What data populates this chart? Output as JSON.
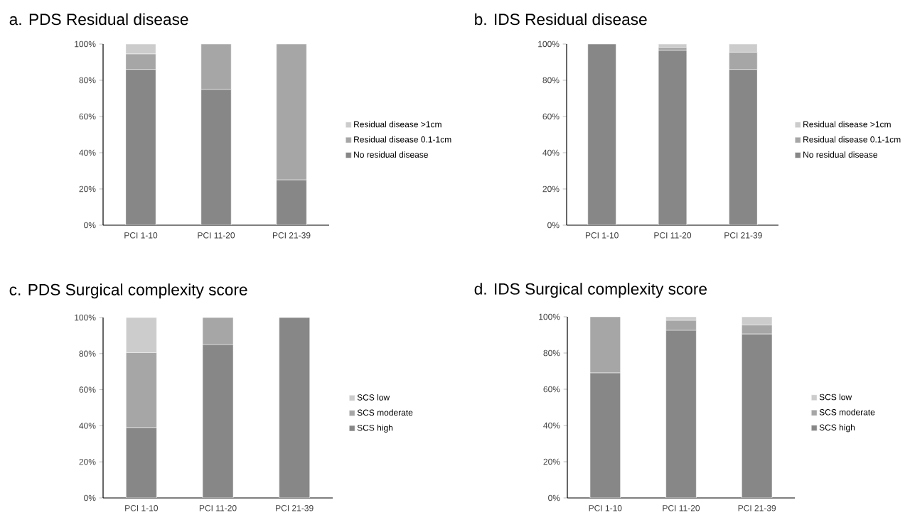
{
  "chart_data": [
    {
      "type": "bar",
      "stacked": true,
      "title": "a. PDS Residual disease",
      "categories": [
        "PCI 1-10",
        "PCI 11-20",
        "PCI 21-39"
      ],
      "series": [
        {
          "name": "No residual disease",
          "color": "#878787",
          "values": [
            86,
            75,
            25
          ]
        },
        {
          "name": "Residual disease 0.1-1cm",
          "color": "#a6a6a6",
          "values": [
            8.5,
            25,
            75
          ]
        },
        {
          "name": "Residual disease >1cm",
          "color": "#cccccc",
          "values": [
            5.5,
            0,
            0
          ]
        }
      ],
      "ylim": [
        0,
        100
      ],
      "yticks": [
        {
          "value": 0,
          "label": "0%"
        },
        {
          "value": 20,
          "label": "20%"
        },
        {
          "value": 40,
          "label": "40%"
        },
        {
          "value": 60,
          "label": "60%"
        },
        {
          "value": 80,
          "label": "80%"
        },
        {
          "value": 100,
          "label": "100%"
        }
      ],
      "legend": "right"
    },
    {
      "type": "bar",
      "stacked": true,
      "title": "b. IDS Residual disease",
      "categories": [
        "PCI 1-10",
        "PCI 11-20",
        "PCI 21-39"
      ],
      "series": [
        {
          "name": "No residual disease",
          "color": "#878787",
          "values": [
            100,
            96.5,
            86
          ]
        },
        {
          "name": "Residual disease 0.1-1cm",
          "color": "#a6a6a6",
          "values": [
            0,
            1.7,
            9.5
          ]
        },
        {
          "name": "Residual disease >1cm",
          "color": "#cccccc",
          "values": [
            0,
            1.8,
            4.5
          ]
        }
      ],
      "ylim": [
        0,
        100
      ],
      "yticks": [
        {
          "value": 0,
          "label": "0%"
        },
        {
          "value": 20,
          "label": "20%"
        },
        {
          "value": 40,
          "label": "40%"
        },
        {
          "value": 60,
          "label": "60%"
        },
        {
          "value": 80,
          "label": "80%"
        },
        {
          "value": 100,
          "label": "100%"
        }
      ],
      "legend": "right"
    },
    {
      "type": "bar",
      "stacked": true,
      "title": "c. PDS Surgical complexity score",
      "categories": [
        "PCI 1-10",
        "PCI 11-20",
        "PCI 21-39"
      ],
      "series": [
        {
          "name": "SCS high",
          "color": "#878787",
          "values": [
            39,
            85,
            100
          ]
        },
        {
          "name": "SCS moderate",
          "color": "#a6a6a6",
          "values": [
            41.5,
            15,
            0
          ]
        },
        {
          "name": "SCS low",
          "color": "#cccccc",
          "values": [
            19.5,
            0,
            0
          ]
        }
      ],
      "ylim": [
        0,
        100
      ],
      "yticks": [
        {
          "value": 0,
          "label": "0%"
        },
        {
          "value": 20,
          "label": "20%"
        },
        {
          "value": 40,
          "label": "40%"
        },
        {
          "value": 60,
          "label": "60%"
        },
        {
          "value": 80,
          "label": "80%"
        },
        {
          "value": 100,
          "label": "100%"
        }
      ],
      "legend": "right"
    },
    {
      "type": "bar",
      "stacked": true,
      "title": "d. IDS Surgical complexity score",
      "categories": [
        "PCI 1-10",
        "PCI 11-20",
        "PCI 21-39"
      ],
      "series": [
        {
          "name": "SCS high",
          "color": "#878787",
          "values": [
            69,
            92.5,
            90.5
          ]
        },
        {
          "name": "SCS moderate",
          "color": "#a6a6a6",
          "values": [
            31,
            5.5,
            5
          ]
        },
        {
          "name": "SCS low",
          "color": "#cccccc",
          "values": [
            0,
            2,
            4.5
          ]
        }
      ],
      "ylim": [
        0,
        100
      ],
      "yticks": [
        {
          "value": 0,
          "label": "0%"
        },
        {
          "value": 20,
          "label": "20%"
        },
        {
          "value": 40,
          "label": "40%"
        },
        {
          "value": 60,
          "label": "60%"
        },
        {
          "value": 80,
          "label": "80%"
        },
        {
          "value": 100,
          "label": "100%"
        }
      ],
      "legend": "right"
    }
  ]
}
